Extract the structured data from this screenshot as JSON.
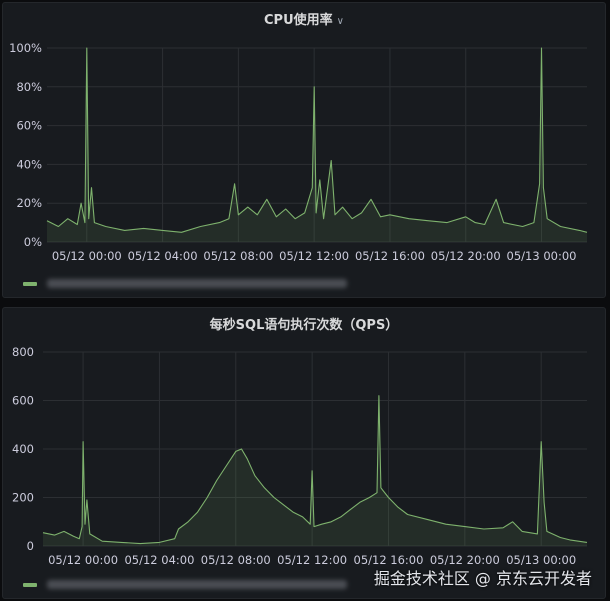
{
  "colors": {
    "series": "#7eb26d",
    "grid": "#2c2f33",
    "panel": "#181b1f",
    "text": "#ccccdc"
  },
  "watermark": "掘金技术社区 @ 京东云开发者",
  "chart_data": [
    {
      "type": "area",
      "title": "CPU使用率",
      "title_icon": "chevron-down-icon",
      "x_labels": [
        "05/12 00:00",
        "05/12 04:00",
        "05/12 08:00",
        "05/12 12:00",
        "05/12 16:00",
        "05/12 20:00",
        "05/13 00:00"
      ],
      "y_labels": [
        "0%",
        "20%",
        "40%",
        "60%",
        "80%",
        "100%"
      ],
      "ylim": [
        0,
        100
      ],
      "xlim_hours": [
        -2.1,
        26.4
      ],
      "grid": true,
      "legend": "bottom-left",
      "series": [
        {
          "points": [
            [
              -2.1,
              11
            ],
            [
              -1.5,
              8
            ],
            [
              -1,
              12
            ],
            [
              -0.5,
              9
            ],
            [
              -0.3,
              20
            ],
            [
              -0.1,
              10
            ],
            [
              0,
              100
            ],
            [
              0.1,
              12
            ],
            [
              0.25,
              28
            ],
            [
              0.4,
              10
            ],
            [
              1,
              8
            ],
            [
              2,
              6
            ],
            [
              3,
              7
            ],
            [
              4,
              6
            ],
            [
              5,
              5
            ],
            [
              6,
              8
            ],
            [
              7,
              10
            ],
            [
              7.5,
              12
            ],
            [
              7.8,
              30
            ],
            [
              8,
              14
            ],
            [
              8.5,
              18
            ],
            [
              9,
              14
            ],
            [
              9.5,
              22
            ],
            [
              10,
              13
            ],
            [
              10.5,
              17
            ],
            [
              11,
              12
            ],
            [
              11.5,
              15
            ],
            [
              11.9,
              28
            ],
            [
              12,
              80
            ],
            [
              12.1,
              15
            ],
            [
              12.3,
              32
            ],
            [
              12.5,
              12
            ],
            [
              12.9,
              42
            ],
            [
              13.1,
              14
            ],
            [
              13.5,
              18
            ],
            [
              14,
              12
            ],
            [
              14.5,
              15
            ],
            [
              15,
              22
            ],
            [
              15.5,
              13
            ],
            [
              16,
              14
            ],
            [
              17,
              12
            ],
            [
              18,
              11
            ],
            [
              19,
              10
            ],
            [
              20,
              13
            ],
            [
              20.5,
              10
            ],
            [
              21,
              9
            ],
            [
              21.6,
              22
            ],
            [
              22,
              10
            ],
            [
              23,
              8
            ],
            [
              23.6,
              10
            ],
            [
              23.9,
              30
            ],
            [
              24,
              100
            ],
            [
              24.1,
              28
            ],
            [
              24.3,
              12
            ],
            [
              25,
              8
            ],
            [
              26,
              6
            ],
            [
              26.4,
              5
            ]
          ]
        }
      ]
    },
    {
      "type": "area",
      "title": "每秒SQL语句执行次数（QPS）",
      "x_labels": [
        "05/12 00:00",
        "05/12 04:00",
        "05/12 08:00",
        "05/12 12:00",
        "05/12 16:00",
        "05/12 20:00",
        "05/13 00:00"
      ],
      "y_labels": [
        "0",
        "200",
        "400",
        "600",
        "800"
      ],
      "ylim": [
        0,
        800
      ],
      "xlim_hours": [
        -2.1,
        26.4
      ],
      "grid": true,
      "legend": "bottom-left",
      "series": [
        {
          "points": [
            [
              -2.1,
              55
            ],
            [
              -1.5,
              45
            ],
            [
              -1,
              60
            ],
            [
              -0.5,
              40
            ],
            [
              -0.2,
              30
            ],
            [
              -0.05,
              80
            ],
            [
              0,
              430
            ],
            [
              0.1,
              90
            ],
            [
              0.2,
              190
            ],
            [
              0.35,
              50
            ],
            [
              1,
              20
            ],
            [
              2,
              15
            ],
            [
              3,
              10
            ],
            [
              4,
              15
            ],
            [
              4.8,
              30
            ],
            [
              5,
              70
            ],
            [
              5.5,
              100
            ],
            [
              6,
              140
            ],
            [
              6.5,
              200
            ],
            [
              7,
              270
            ],
            [
              7.5,
              330
            ],
            [
              8,
              390
            ],
            [
              8.3,
              400
            ],
            [
              8.6,
              360
            ],
            [
              9,
              290
            ],
            [
              9.5,
              240
            ],
            [
              10,
              200
            ],
            [
              10.5,
              170
            ],
            [
              11,
              140
            ],
            [
              11.5,
              120
            ],
            [
              11.9,
              90
            ],
            [
              12,
              310
            ],
            [
              12.1,
              80
            ],
            [
              12.5,
              90
            ],
            [
              13,
              100
            ],
            [
              13.5,
              120
            ],
            [
              14,
              150
            ],
            [
              14.5,
              180
            ],
            [
              15,
              200
            ],
            [
              15.4,
              220
            ],
            [
              15.5,
              620
            ],
            [
              15.6,
              240
            ],
            [
              16,
              200
            ],
            [
              16.5,
              160
            ],
            [
              17,
              130
            ],
            [
              18,
              110
            ],
            [
              19,
              90
            ],
            [
              20,
              80
            ],
            [
              21,
              70
            ],
            [
              22,
              75
            ],
            [
              22.5,
              100
            ],
            [
              23,
              60
            ],
            [
              23.8,
              50
            ],
            [
              24,
              430
            ],
            [
              24.15,
              180
            ],
            [
              24.3,
              60
            ],
            [
              25,
              35
            ],
            [
              25.5,
              25
            ],
            [
              26.4,
              15
            ]
          ]
        }
      ]
    }
  ]
}
